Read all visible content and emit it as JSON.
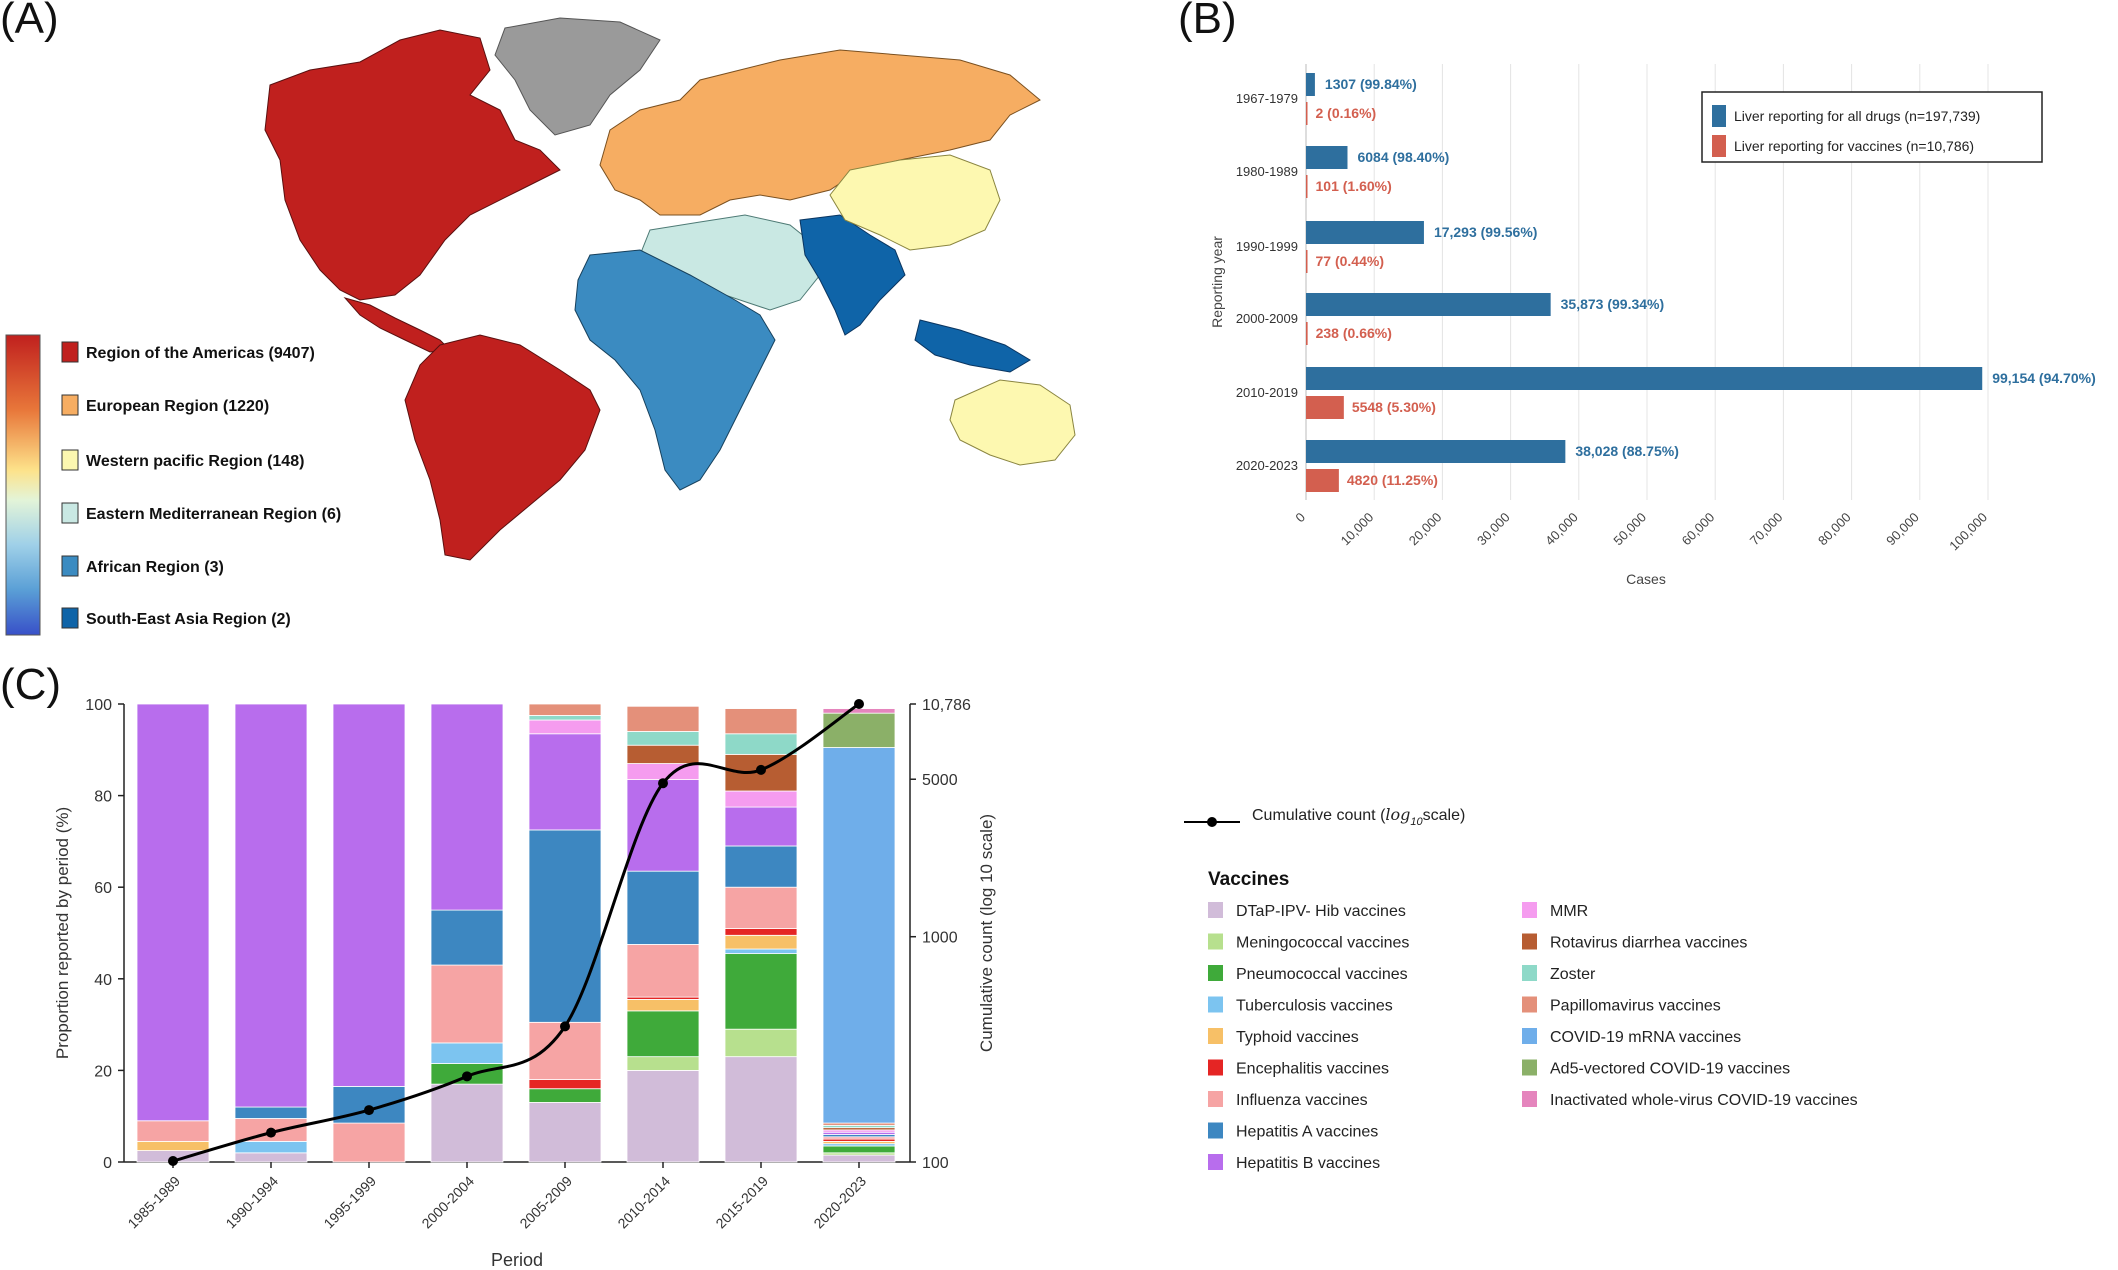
{
  "panels": {
    "a": "(A)",
    "b": "(B)",
    "c": "(C)"
  },
  "map": {
    "legend": [
      {
        "label": "Region of the Americas (9407)",
        "color": "#c0201e"
      },
      {
        "label": "European Region (1220)",
        "color": "#f6ad62"
      },
      {
        "label": "Western pacific Region (148)",
        "color": "#fdf8b0"
      },
      {
        "label": "Eastern Mediterranean  Region (6)",
        "color": "#c9e8e3"
      },
      {
        "label": "African Region (3)",
        "color": "#3b8bc1"
      },
      {
        "label": "South-East Asia Region (2)",
        "color": "#0f64a8"
      }
    ],
    "colorbar": [
      "#c0201e",
      "#e8773a",
      "#fde28a",
      "#e3f4d8",
      "#9fd0e8",
      "#5a9fd6",
      "#3850c8"
    ]
  },
  "chart_data": [
    {
      "type": "bar",
      "orientation": "horizontal",
      "categories": [
        "1967-1979",
        "1980-1989",
        "1990-1999",
        "2000-2009",
        "2010-2019",
        "2020-2023"
      ],
      "series": [
        {
          "name": "Liver reporting for all drugs (n=197,739)",
          "color": "#2e6f9e",
          "values": [
            1307,
            6084,
            17293,
            35873,
            99154,
            38028
          ],
          "labels": [
            "1307 (99.84%)",
            "6084 (98.40%)",
            "17,293 (99.56%)",
            "35,873 (99.34%)",
            "99,154 (94.70%)",
            "38,028 (88.75%)"
          ]
        },
        {
          "name": "Liver reporting for vaccines (n=10,786)",
          "color": "#d35f4f",
          "values": [
            2,
            101,
            77,
            238,
            5548,
            4820
          ],
          "labels": [
            "2 (0.16%)",
            "101 (1.60%)",
            "77 (0.44%)",
            "238 (0.66%)",
            "5548 (5.30%)",
            "4820 (11.25%)"
          ]
        }
      ],
      "xlabel": "Cases",
      "ylabel": "Reporting year",
      "xlim": [
        0,
        100000
      ],
      "xticks": [
        "0",
        "10,000",
        "20,000",
        "30,000",
        "40,000",
        "50,000",
        "60,000",
        "70,000",
        "80,000",
        "90,000",
        "100,000"
      ],
      "grid": true,
      "legend_position": "top-right"
    },
    {
      "type": "bar",
      "stacked": true,
      "categories": [
        "1985-1989",
        "1990-1994",
        "1995-1999",
        "2000-2004",
        "2005-2009",
        "2010-2014",
        "2015-2019",
        "2020-2023"
      ],
      "ylabel": "Proportion reported by period (%)",
      "xlabel": "Period",
      "ylim": [
        0,
        100
      ],
      "yticks": [
        "0",
        "20",
        "40",
        "60",
        "80",
        "100"
      ],
      "y2label": "Cumulative count (log 10 scale)",
      "y2ticks": [
        {
          "value": 100,
          "label": "100"
        },
        {
          "value": 1000,
          "label": "1000"
        },
        {
          "value": 5000,
          "label": "5000"
        },
        {
          "value": 10786,
          "label": "10,786"
        }
      ],
      "y2lim": [
        100,
        10786
      ],
      "legend_title": "Vaccines",
      "series": [
        {
          "name": "DTaP-IPV- Hib vaccines",
          "color": "#d1bcd9",
          "values": [
            2.5,
            2.0,
            0,
            17,
            13,
            20,
            23,
            1.5
          ]
        },
        {
          "name": "Meningococcal vaccines",
          "color": "#b7e08e",
          "values": [
            0,
            0,
            0,
            0,
            0,
            3,
            6,
            0.5
          ]
        },
        {
          "name": "Pneumococcal vaccines",
          "color": "#3faa3a",
          "values": [
            0,
            0,
            0,
            4.5,
            3,
            10,
            16.5,
            1.5
          ]
        },
        {
          "name": "Tuberculosis vaccines",
          "color": "#7cc4f0",
          "values": [
            0,
            2.5,
            0,
            4.5,
            0,
            0,
            1,
            0.5
          ]
        },
        {
          "name": "Typhoid vaccines",
          "color": "#f7c067",
          "values": [
            2,
            0,
            0,
            0,
            0,
            2.5,
            3,
            0.5
          ]
        },
        {
          "name": "Encephalitis vaccines",
          "color": "#e52524",
          "values": [
            0,
            0,
            0,
            0,
            2,
            0.5,
            1.5,
            0.5
          ]
        },
        {
          "name": "Influenza vaccines",
          "color": "#f6a4a4",
          "values": [
            4.5,
            5,
            8.5,
            17,
            12.5,
            11.5,
            9,
            0.5
          ]
        },
        {
          "name": "Hepatitis A vaccines",
          "color": "#3d87c1",
          "values": [
            0,
            2.5,
            8,
            12,
            42,
            16,
            9,
            0.5
          ]
        },
        {
          "name": "Hepatitis B vaccines",
          "color": "#b86ded",
          "values": [
            91,
            88,
            83.5,
            45,
            21,
            20,
            8.5,
            0.5
          ]
        },
        {
          "name": "MMR",
          "color": "#f59cef",
          "values": [
            0,
            0,
            0,
            0,
            3,
            3.5,
            3.5,
            0.5
          ]
        },
        {
          "name": "Rotavirus diarrhea vaccines",
          "color": "#b75d32",
          "values": [
            0,
            0,
            0,
            0,
            0,
            4,
            8,
            0.5
          ]
        },
        {
          "name": "Zoster",
          "color": "#8ed9c8",
          "values": [
            0,
            0,
            0,
            0,
            1,
            3,
            4.5,
            0.5
          ]
        },
        {
          "name": "Papillomavirus vaccines",
          "color": "#e4907a",
          "values": [
            0,
            0,
            0,
            0,
            2.5,
            5.5,
            5.5,
            0.5
          ]
        },
        {
          "name": "COVID-19 mRNA vaccines",
          "color": "#6faeea",
          "values": [
            0,
            0,
            0,
            0,
            0,
            0,
            0,
            82
          ]
        },
        {
          "name": "Ad5-vectored COVID-19 vaccines",
          "color": "#8bb068",
          "values": [
            0,
            0,
            0,
            0,
            0,
            0,
            0,
            7.5
          ]
        },
        {
          "name": "Inactivated whole-virus COVID-19 vaccines",
          "color": "#e585bd",
          "values": [
            0,
            0,
            0,
            0,
            0,
            0,
            0,
            1
          ]
        }
      ],
      "line": {
        "name": "Cumulative count (log10scale)",
        "legend_label_prefix": "Cumulative count (",
        "legend_label_math": "log",
        "legend_label_sub": "10",
        "legend_label_suffix": "scale)",
        "values": [
          101,
          135,
          170,
          240,
          400,
          4800,
          5500,
          10786
        ]
      }
    }
  ]
}
